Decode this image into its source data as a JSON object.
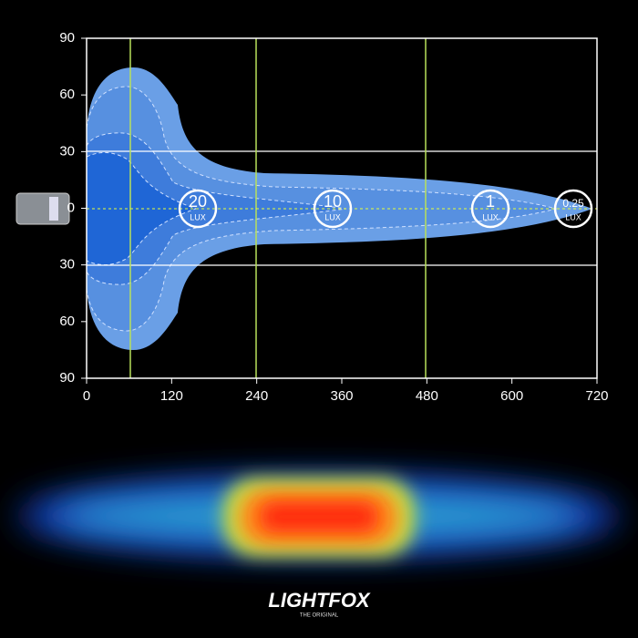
{
  "axes": {
    "xticks": [
      0,
      120,
      240,
      360,
      480,
      600,
      720
    ],
    "yticks": [
      90,
      60,
      30,
      0,
      30,
      60,
      90
    ]
  },
  "lux_labels": [
    {
      "value": "20",
      "unit": "LUX"
    },
    {
      "value": "10",
      "unit": "LUX"
    },
    {
      "value": "1",
      "unit": "LUX"
    },
    {
      "value": "0.25",
      "unit": "LUX"
    }
  ],
  "logo": {
    "brand": "LIGHTFOX",
    "tagline": "THE ORIGINAL"
  }
}
